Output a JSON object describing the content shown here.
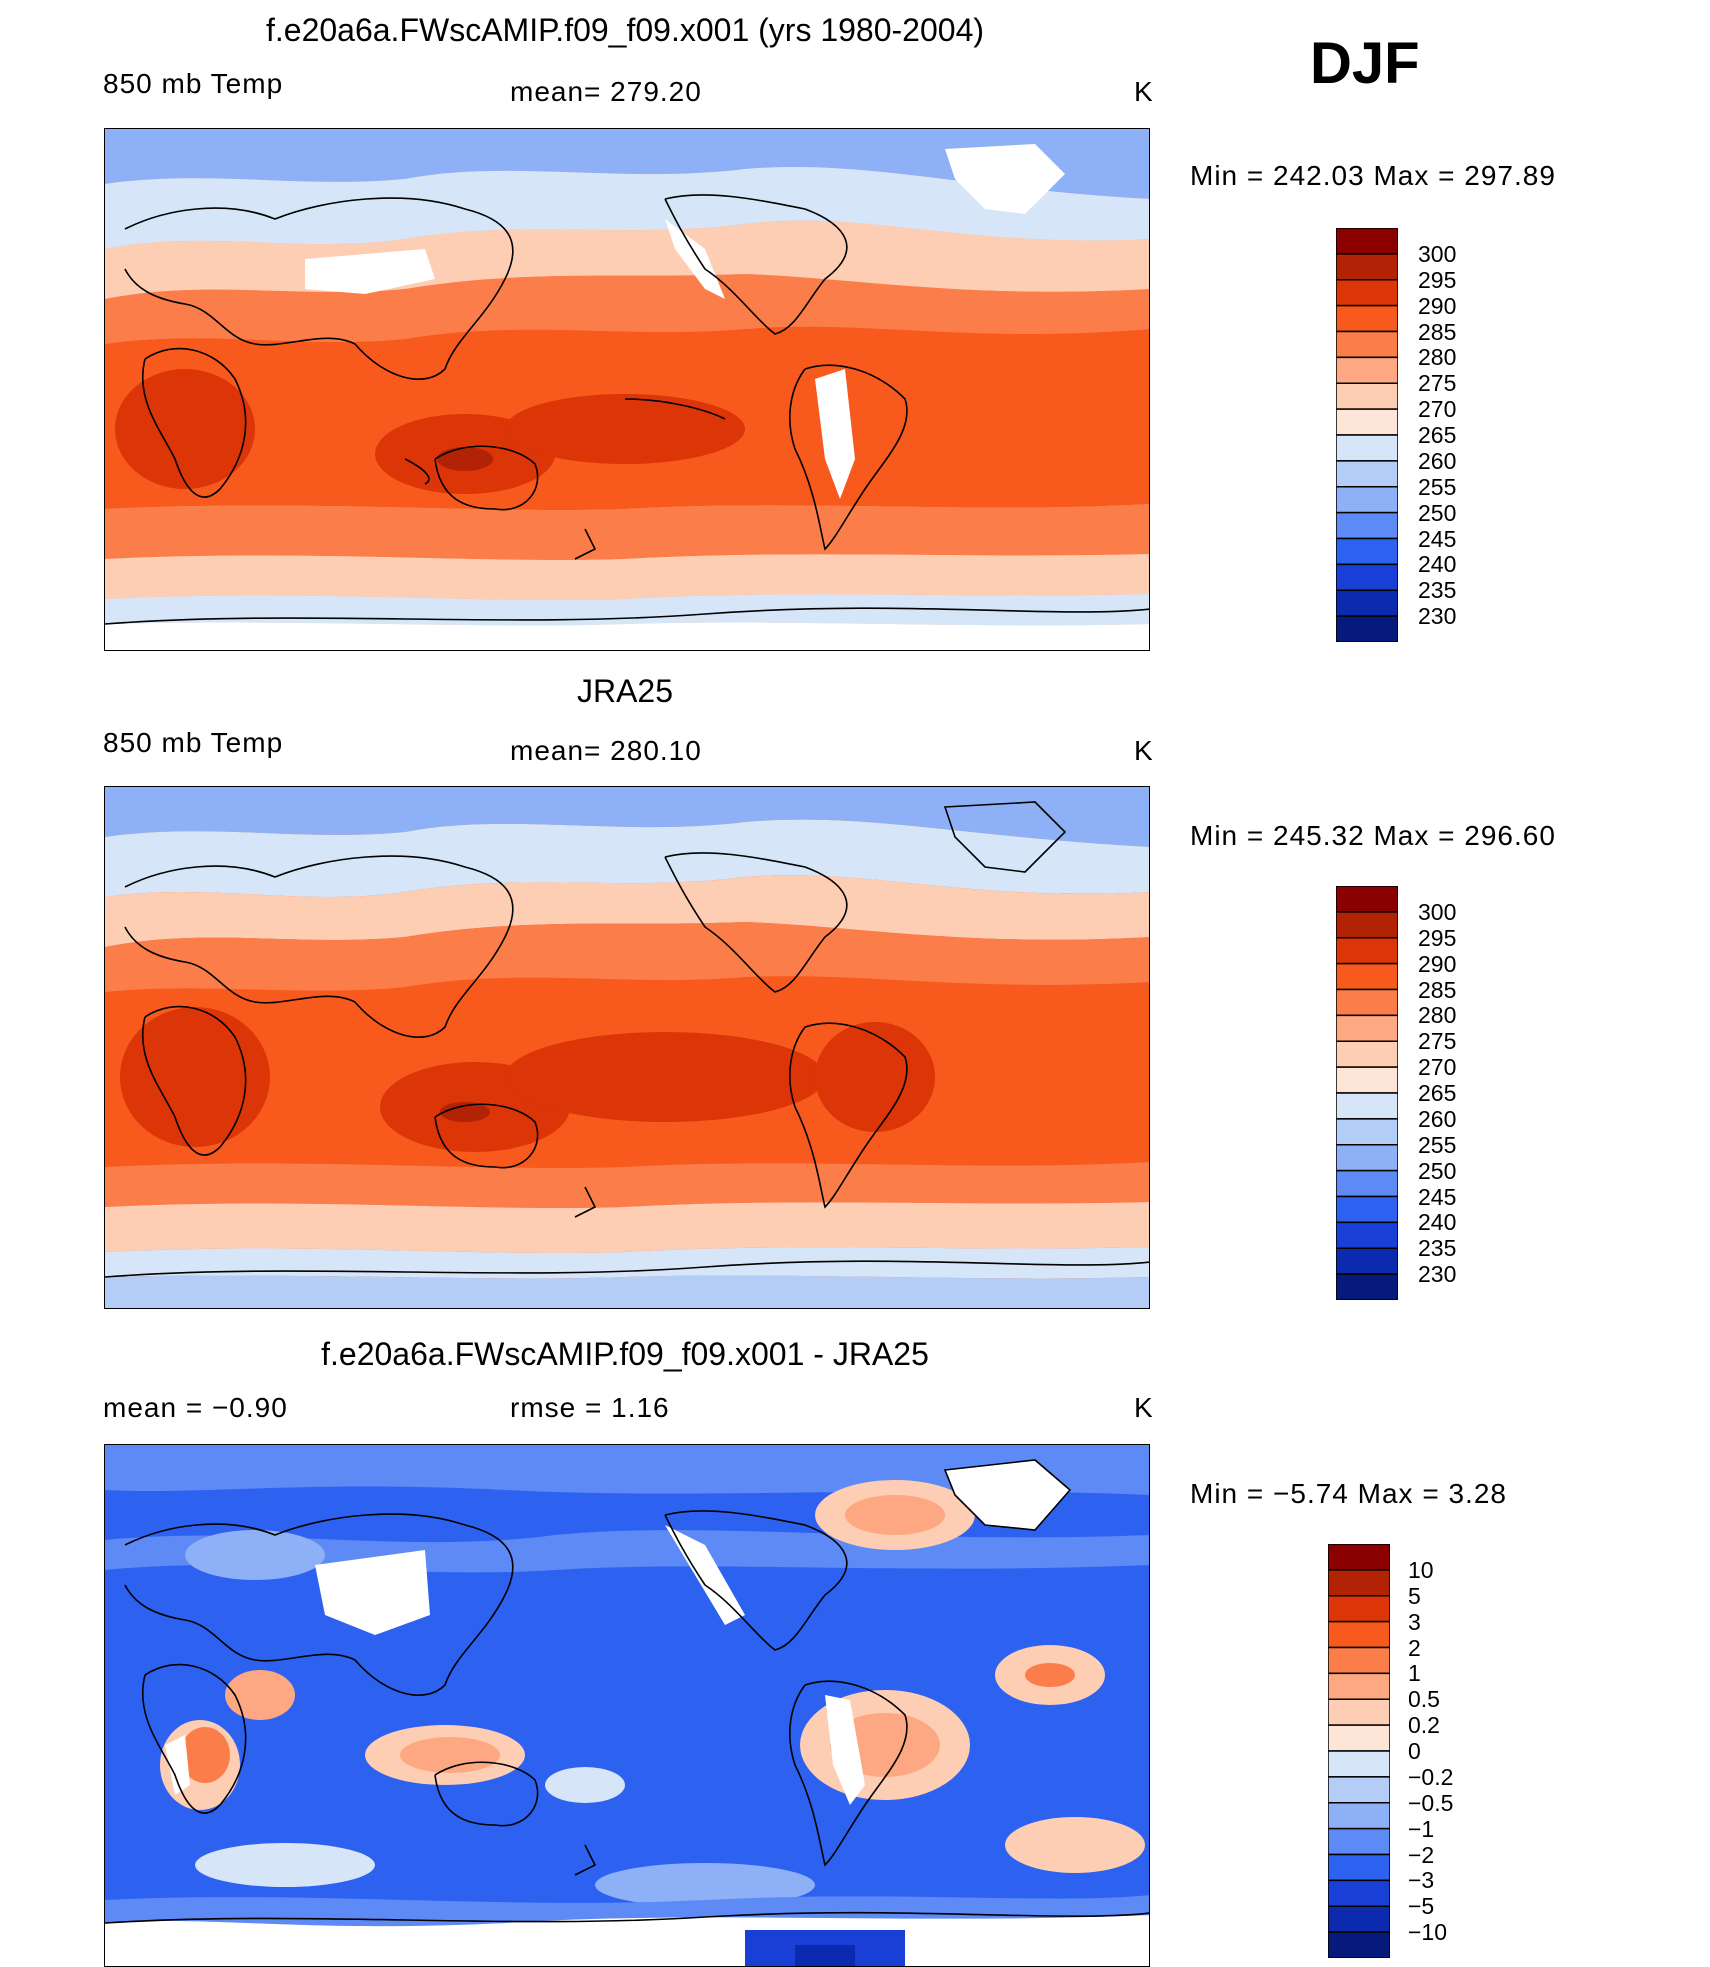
{
  "season": "DJF",
  "panels": [
    {
      "title": "f.e20a6a.FWscAMIP.f09_f09.x001 (yrs 1980-2004)",
      "left_label": "850 mb Temp",
      "center_label": "mean=  279.20",
      "units": "K",
      "minmax": "Min  =  242.03  Max  =  297.89",
      "colorbar_labels": [
        "300",
        "295",
        "290",
        "285",
        "280",
        "275",
        "270",
        "265",
        "260",
        "255",
        "250",
        "245",
        "240",
        "235",
        "230"
      ]
    },
    {
      "title": "JRA25",
      "left_label": "850 mb Temp",
      "center_label": "mean=  280.10",
      "units": "K",
      "minmax": "Min  =  245.32  Max  =  296.60",
      "colorbar_labels": [
        "300",
        "295",
        "290",
        "285",
        "280",
        "275",
        "270",
        "265",
        "260",
        "255",
        "250",
        "245",
        "240",
        "235",
        "230"
      ]
    },
    {
      "title": "f.e20a6a.FWscAMIP.f09_f09.x001 - JRA25",
      "left_label": "mean  =    −0.90",
      "center_label": "rmse  =     1.16",
      "units": "K",
      "minmax": "Min  =    −5.74  Max  =      3.28",
      "colorbar_labels": [
        "10",
        "5",
        "3",
        "2",
        "1",
        "0.5",
        "0.2",
        "0",
        "−0.2",
        "−0.5",
        "−1",
        "−2",
        "−3",
        "−5",
        "−10"
      ]
    }
  ],
  "colors": {
    "abs_scale": [
      "#8b0000",
      "#b22204",
      "#db3508",
      "#f75a1c",
      "#fb7e4a",
      "#fda882",
      "#fdcdb4",
      "#fde6d8",
      "#d6e5f7",
      "#b3cdf6",
      "#8db0f7",
      "#5e8af5",
      "#2d62f0",
      "#1a3fd6",
      "#0c2aad",
      "#061a7c"
    ],
    "diff_scale": [
      "#8b0000",
      "#b22204",
      "#db3508",
      "#f75a1c",
      "#fb7e4a",
      "#fda882",
      "#fdcdb4",
      "#fde6d8",
      "#d6e5f7",
      "#b3cdf6",
      "#8db0f7",
      "#5e8af5",
      "#2d62f0",
      "#1a3fd6",
      "#0c2aad",
      "#061a7c"
    ]
  }
}
